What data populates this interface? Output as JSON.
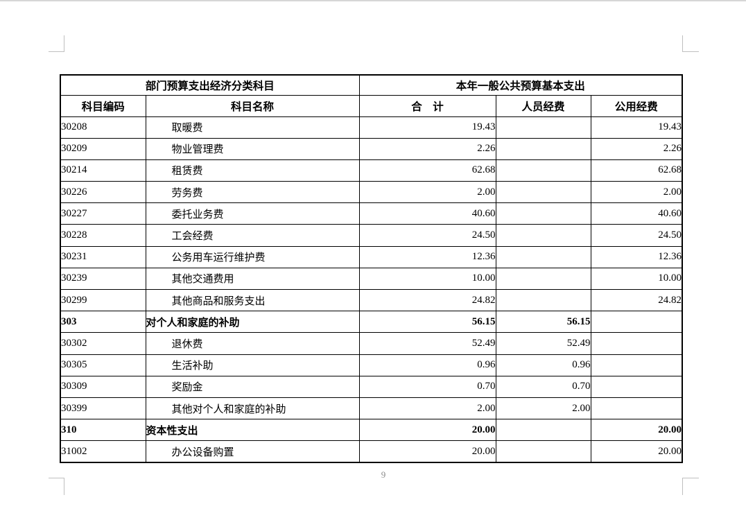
{
  "document": {
    "page_number": "9",
    "table": {
      "group_headers": {
        "left": "部门预算支出经济分类科目",
        "right": "本年一般公共预算基本支出"
      },
      "column_headers": [
        "科目编码",
        "科目名称",
        "合　计",
        "人员经费",
        "公用经费"
      ],
      "rows": [
        {
          "code": "30208",
          "name": "取暖费",
          "total": "19.43",
          "personnel": "",
          "public": "19.43",
          "bold": false,
          "indent": true
        },
        {
          "code": "30209",
          "name": "物业管理费",
          "total": "2.26",
          "personnel": "",
          "public": "2.26",
          "bold": false,
          "indent": true
        },
        {
          "code": "30214",
          "name": "租赁费",
          "total": "62.68",
          "personnel": "",
          "public": "62.68",
          "bold": false,
          "indent": true
        },
        {
          "code": "30226",
          "name": "劳务费",
          "total": "2.00",
          "personnel": "",
          "public": "2.00",
          "bold": false,
          "indent": true
        },
        {
          "code": "30227",
          "name": "委托业务费",
          "total": "40.60",
          "personnel": "",
          "public": "40.60",
          "bold": false,
          "indent": true
        },
        {
          "code": "30228",
          "name": "工会经费",
          "total": "24.50",
          "personnel": "",
          "public": "24.50",
          "bold": false,
          "indent": true
        },
        {
          "code": "30231",
          "name": "公务用车运行维护费",
          "total": "12.36",
          "personnel": "",
          "public": "12.36",
          "bold": false,
          "indent": true
        },
        {
          "code": "30239",
          "name": "其他交通费用",
          "total": "10.00",
          "personnel": "",
          "public": "10.00",
          "bold": false,
          "indent": true
        },
        {
          "code": "30299",
          "name": "其他商品和服务支出",
          "total": "24.82",
          "personnel": "",
          "public": "24.82",
          "bold": false,
          "indent": true
        },
        {
          "code": "303",
          "name": "对个人和家庭的补助",
          "total": "56.15",
          "personnel": "56.15",
          "public": "",
          "bold": true,
          "indent": false
        },
        {
          "code": "30302",
          "name": "退休费",
          "total": "52.49",
          "personnel": "52.49",
          "public": "",
          "bold": false,
          "indent": true
        },
        {
          "code": "30305",
          "name": "生活补助",
          "total": "0.96",
          "personnel": "0.96",
          "public": "",
          "bold": false,
          "indent": true
        },
        {
          "code": "30309",
          "name": "奖励金",
          "total": "0.70",
          "personnel": "0.70",
          "public": "",
          "bold": false,
          "indent": true
        },
        {
          "code": "30399",
          "name": "其他对个人和家庭的补助",
          "total": "2.00",
          "personnel": "2.00",
          "public": "",
          "bold": false,
          "indent": true
        },
        {
          "code": "310",
          "name": "资本性支出",
          "total": "20.00",
          "personnel": "",
          "public": "20.00",
          "bold": true,
          "indent": false
        },
        {
          "code": "31002",
          "name": "办公设备购置",
          "total": "20.00",
          "personnel": "",
          "public": "20.00",
          "bold": false,
          "indent": true
        }
      ]
    },
    "colors": {
      "table_border": "#000000",
      "corner_mark": "#bfbfbf",
      "page_number_text": "#8a8a8a",
      "page_top_edge": "#d6d6d6",
      "page_background": "#ffffff"
    }
  }
}
